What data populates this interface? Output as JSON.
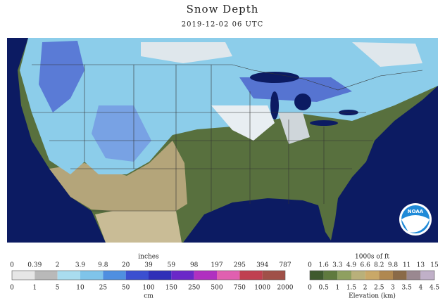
{
  "header": {
    "title": "Snow Depth",
    "subtitle": "2019-12-02 06 UTC"
  },
  "snow_legend": {
    "top_unit": "inches",
    "top_ticks": [
      0,
      0.39,
      2,
      3.9,
      9.8,
      20,
      39,
      59,
      98,
      197,
      295,
      394,
      787
    ],
    "bottom_ticks": [
      0,
      1,
      5,
      10,
      25,
      50,
      100,
      150,
      250,
      500,
      750,
      1000,
      2000
    ],
    "bottom_unit": "cm"
  },
  "elevation_legend": {
    "top_unit": "1000s of ft",
    "top_ticks": [
      0,
      1.6,
      3.3,
      4.9,
      6.6,
      8.2,
      9.8,
      11,
      13,
      15
    ],
    "bottom_ticks": [
      0,
      0.5,
      1,
      1.5,
      2,
      2.5,
      3,
      3.5,
      4,
      4.5
    ],
    "bottom_unit": "Elevation (km)"
  },
  "logo": {
    "text": "NOAA"
  }
}
